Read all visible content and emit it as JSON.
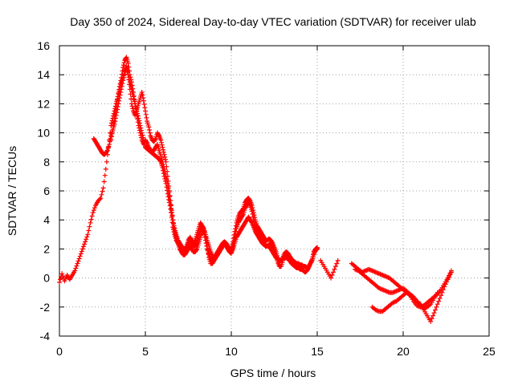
{
  "chart_data": {
    "type": "scatter",
    "title": "Day 350 of 2024, Sidereal Day-to-day VTEC variation (SDTVAR) for receiver ulab",
    "xlabel": "GPS time / hours",
    "ylabel": "SDTVAR / TECUs",
    "xlim": [
      0,
      25
    ],
    "ylim": [
      -4,
      16
    ],
    "xticks": [
      0,
      5,
      10,
      15,
      20,
      25
    ],
    "yticks": [
      -4,
      -2,
      0,
      2,
      4,
      6,
      8,
      10,
      12,
      14,
      16
    ],
    "grid": true,
    "marker": "+",
    "color": "#ff0000",
    "series": [
      {
        "name": "SDTVAR",
        "segments": [
          {
            "x": [
              0.0,
              0.15,
              0.3,
              0.45,
              0.6,
              0.75,
              0.9,
              1.05,
              1.2,
              1.35,
              1.5,
              1.65,
              1.8,
              1.95,
              2.1,
              2.25,
              2.4,
              2.55,
              2.7,
              2.85,
              3.0,
              3.1,
              3.2,
              3.3,
              3.4,
              3.5,
              3.6,
              3.7,
              3.8,
              3.9,
              4.0,
              4.1,
              4.2,
              4.3,
              4.4,
              4.5,
              4.6,
              4.7,
              4.8,
              4.9,
              5.0,
              5.1,
              5.2,
              5.3,
              5.4,
              5.5,
              5.6,
              5.7,
              5.8,
              5.9,
              6.0,
              6.1,
              6.2,
              6.3,
              6.4,
              6.5,
              6.6,
              6.7,
              6.8,
              6.9,
              7.0,
              7.1,
              7.2,
              7.3,
              7.4,
              7.5,
              7.6,
              7.7,
              7.8,
              7.9,
              8.0,
              8.1,
              8.2,
              8.3,
              8.4,
              8.5,
              8.6,
              8.7,
              8.8,
              8.9,
              9.0,
              9.1,
              9.2,
              9.3,
              9.4,
              9.5,
              9.6,
              9.7,
              9.8,
              9.9,
              10.0,
              10.1,
              10.2,
              10.3,
              10.4,
              10.5,
              10.6,
              10.7,
              10.8,
              10.9,
              11.0,
              11.1,
              11.2,
              11.3,
              11.4,
              11.5,
              11.6,
              11.7,
              11.8,
              11.9,
              12.0,
              12.1,
              12.2,
              12.3,
              12.4,
              12.5,
              12.6,
              12.7,
              12.8,
              12.9,
              13.0,
              13.1,
              13.2,
              13.3,
              13.4,
              13.5,
              13.6,
              13.7,
              13.8,
              13.9,
              14.0,
              14.1,
              14.2,
              14.3,
              14.4,
              14.5,
              14.6,
              14.7,
              14.8,
              14.9,
              15.0
            ],
            "y": [
              -0.3,
              0.3,
              -0.2,
              0.2,
              -0.1,
              0.2,
              0.5,
              1.0,
              1.5,
              2.0,
              2.5,
              3.0,
              3.8,
              4.5,
              5.0,
              5.3,
              5.5,
              6.2,
              7.5,
              9.0,
              10.5,
              11.0,
              11.5,
              12.0,
              12.5,
              13.0,
              13.5,
              13.8,
              14.2,
              14.5,
              14.0,
              13.5,
              13.0,
              12.5,
              12.0,
              11.5,
              11.0,
              10.5,
              10.0,
              9.5,
              9.0,
              8.9,
              8.8,
              8.7,
              8.6,
              8.5,
              8.4,
              8.3,
              8.2,
              8.0,
              7.6,
              7.0,
              6.5,
              5.8,
              5.2,
              4.5,
              3.5,
              3.0,
              2.6,
              2.4,
              2.2,
              2.0,
              1.8,
              1.8,
              2.0,
              2.4,
              2.6,
              2.4,
              2.2,
              2.2,
              2.4,
              2.8,
              3.2,
              3.6,
              3.4,
              2.8,
              2.2,
              1.4,
              1.0,
              1.0,
              1.2,
              1.4,
              1.6,
              1.8,
              2.0,
              2.2,
              2.4,
              2.3,
              2.0,
              1.8,
              1.8,
              2.2,
              2.8,
              3.4,
              3.8,
              4.0,
              4.2,
              4.4,
              4.8,
              5.0,
              5.2,
              5.0,
              4.6,
              4.0,
              3.5,
              3.2,
              3.0,
              2.8,
              2.6,
              2.4,
              2.2,
              2.2,
              2.3,
              2.4,
              2.2,
              1.9,
              1.5,
              1.1,
              0.8,
              0.8,
              1.2,
              1.6,
              1.6,
              1.5,
              1.2,
              1.0,
              0.9,
              0.8,
              0.7,
              0.7,
              0.6,
              0.6,
              0.5,
              0.4,
              0.5,
              0.7,
              1.0,
              1.3,
              1.8,
              2.0,
              2.1
            ]
          },
          {
            "x": [
              3.0,
              3.1,
              3.2,
              3.3,
              3.4,
              3.5,
              3.6,
              3.7,
              3.8,
              3.9,
              4.0,
              4.1,
              4.2,
              4.3,
              4.4,
              4.5,
              4.6,
              4.7,
              4.8,
              4.9,
              5.0,
              5.1,
              5.2,
              5.3,
              5.4,
              5.5,
              5.6,
              5.7,
              5.8,
              5.9,
              6.0,
              6.1,
              6.2,
              6.3,
              6.4,
              6.5,
              6.6,
              6.7,
              6.8,
              6.9,
              7.0,
              7.1,
              7.2,
              7.3,
              7.4,
              7.5,
              7.6,
              7.7,
              7.8,
              7.9,
              8.0,
              8.1,
              8.2,
              8.3,
              8.4,
              8.5,
              8.6,
              8.7,
              8.8,
              8.9,
              9.0,
              9.1,
              9.2,
              9.3,
              9.4,
              9.5,
              9.6,
              9.7,
              9.8,
              9.9,
              10.0,
              10.1,
              10.2,
              10.3,
              10.4,
              10.5,
              10.6,
              10.7,
              10.8,
              10.9,
              11.0,
              11.1,
              11.2,
              11.3,
              11.4,
              11.5,
              11.6,
              11.7,
              11.8,
              11.9,
              12.0,
              12.1,
              12.2,
              12.3,
              12.4,
              12.5,
              12.6,
              12.7,
              12.8,
              12.9,
              13.0,
              13.1,
              13.2,
              13.3,
              13.4,
              13.5,
              13.6,
              13.7,
              13.8,
              13.9,
              14.0,
              14.1,
              14.2,
              14.3,
              14.4,
              14.5,
              14.6,
              14.7,
              14.8,
              14.9,
              15.0
            ],
            "y": [
              9.5,
              10.2,
              11.0,
              11.8,
              12.5,
              13.2,
              13.8,
              14.5,
              15.0,
              15.2,
              14.8,
              14.0,
              13.5,
              12.8,
              12.0,
              11.2,
              10.5,
              10.0,
              9.5,
              9.2,
              9.5,
              9.3,
              9.0,
              8.8,
              8.7,
              8.8,
              9.0,
              9.2,
              8.8,
              8.4,
              8.0,
              7.5,
              7.0,
              6.5,
              5.6,
              4.8,
              4.0,
              3.4,
              3.0,
              2.6,
              2.4,
              2.2,
              2.0,
              2.0,
              2.2,
              2.6,
              2.8,
              2.6,
              2.4,
              2.6,
              3.0,
              3.4,
              3.8,
              3.6,
              3.2,
              2.6,
              2.0,
              1.6,
              1.3,
              1.2,
              1.4,
              1.6,
              1.8,
              2.0,
              2.2,
              2.4,
              2.5,
              2.4,
              2.2,
              2.0,
              2.0,
              2.5,
              3.2,
              3.8,
              4.2,
              4.5,
              4.6,
              4.8,
              5.2,
              5.4,
              5.5,
              5.3,
              5.0,
              4.5,
              4.0,
              3.6,
              3.4,
              3.2,
              3.0,
              2.8,
              2.6,
              2.6,
              2.7,
              2.6,
              2.4,
              2.1,
              1.8,
              1.4,
              1.2,
              1.2,
              1.4,
              1.7,
              1.8,
              1.7,
              1.5,
              1.3,
              1.2,
              1.1,
              1.0,
              1.0,
              0.9,
              0.9,
              0.8,
              0.8,
              0.7,
              0.8,
              1.0,
              1.2,
              1.6,
              1.9,
              2.0
            ]
          },
          {
            "x": [
              2.0,
              2.1,
              2.2,
              2.3,
              2.4,
              2.5,
              2.6,
              2.7,
              2.8,
              2.9,
              3.0,
              3.1,
              3.2,
              3.3,
              3.4,
              3.5,
              3.6,
              3.7,
              3.8,
              3.9,
              4.0,
              4.1,
              4.2,
              4.3,
              4.4,
              4.5,
              4.6,
              4.7,
              4.8,
              4.9,
              5.0,
              5.1,
              5.2,
              5.3,
              5.4,
              5.5,
              5.6,
              5.7,
              5.8,
              5.9,
              6.0,
              6.1,
              6.2,
              6.3,
              6.4,
              6.5,
              6.6,
              6.7,
              6.8,
              6.9,
              7.0,
              7.1,
              7.2,
              7.3,
              7.4,
              7.5,
              7.6,
              7.7,
              7.8,
              7.9,
              8.0,
              8.1,
              8.2,
              8.3,
              8.4,
              8.5,
              8.6,
              8.7,
              8.8,
              8.9,
              9.0,
              9.1,
              9.2,
              9.3,
              9.4,
              9.5,
              9.6,
              9.7,
              9.8,
              9.9,
              10.0,
              10.1,
              10.2,
              10.3,
              10.4,
              10.5,
              10.6,
              10.7,
              10.8,
              10.9,
              11.0,
              11.1,
              11.2,
              11.3,
              11.4,
              11.5,
              11.6,
              11.7,
              11.8,
              11.9,
              12.0,
              12.1,
              12.2,
              12.3,
              12.4,
              12.5,
              12.6,
              12.7,
              12.8,
              12.9,
              13.0,
              13.1,
              13.2,
              13.3,
              13.4,
              13.5,
              13.6,
              13.7,
              13.8,
              13.9,
              14.0
            ],
            "y": [
              9.6,
              9.4,
              9.2,
              9.0,
              8.8,
              8.6,
              8.5,
              8.6,
              8.8,
              9.2,
              9.8,
              10.2,
              10.6,
              11.2,
              11.8,
              12.4,
              13.0,
              13.6,
              14.2,
              14.6,
              14.0,
              13.0,
              12.0,
              11.5,
              11.2,
              11.6,
              12.0,
              12.4,
              12.8,
              12.2,
              11.5,
              10.8,
              10.4,
              9.8,
              9.5,
              9.4,
              9.6,
              10.0,
              9.8,
              9.5,
              9.0,
              8.5,
              8.0,
              7.0,
              6.0,
              5.0,
              4.0,
              3.2,
              2.8,
              2.4,
              2.0,
              1.8,
              1.6,
              1.6,
              1.8,
              2.0,
              2.2,
              2.0,
              1.8,
              1.8,
              2.0,
              2.4,
              2.8,
              3.2,
              3.4,
              3.0,
              2.6,
              2.2,
              1.8,
              1.5,
              1.4,
              1.5,
              1.6,
              1.8,
              2.0,
              2.2,
              2.4,
              2.2,
              2.0,
              1.8,
              1.7,
              2.0,
              2.4,
              2.8,
              3.0,
              3.2,
              3.4,
              3.6,
              3.8,
              4.0,
              4.2,
              4.0,
              3.8,
              3.5,
              3.2,
              3.0,
              2.8,
              2.6,
              2.4,
              2.3,
              2.2,
              2.2,
              2.2,
              2.0,
              1.8,
              1.6,
              1.4,
              1.3,
              1.2,
              1.2,
              1.3,
              1.4,
              1.4,
              1.3,
              1.2,
              1.1,
              1.0,
              0.9,
              0.8,
              0.8,
              0.7
            ]
          },
          {
            "x": [
              15.2,
              15.4,
              15.6,
              15.8,
              16.0,
              16.2
            ],
            "y": [
              1.2,
              0.8,
              0.4,
              0.0,
              0.6,
              1.2
            ]
          },
          {
            "x": [
              17.0,
              17.2,
              17.4,
              17.6,
              17.8,
              18.0,
              18.2,
              18.4,
              18.6,
              18.8,
              19.0,
              19.2,
              19.4,
              19.6,
              19.8,
              20.0,
              20.2,
              20.4,
              20.6,
              20.8,
              21.0,
              21.2,
              21.4,
              21.6,
              21.8,
              22.0,
              22.2,
              22.4,
              22.6,
              22.8
            ],
            "y": [
              1.0,
              0.8,
              0.6,
              0.4,
              0.5,
              0.6,
              0.5,
              0.4,
              0.3,
              0.2,
              0.1,
              0.0,
              -0.2,
              -0.4,
              -0.6,
              -0.8,
              -1.0,
              -1.2,
              -1.4,
              -1.6,
              -1.8,
              -2.2,
              -2.6,
              -3.0,
              -2.4,
              -1.8,
              -1.2,
              -0.6,
              -0.1,
              0.4
            ]
          },
          {
            "x": [
              17.2,
              17.4,
              17.6,
              17.8,
              18.0,
              18.2,
              18.4,
              18.6,
              18.8,
              19.0,
              19.2,
              19.4,
              19.6,
              19.8,
              20.0,
              20.2,
              20.4,
              20.6,
              20.8,
              21.0,
              21.2,
              21.4,
              21.6,
              21.8,
              22.0,
              22.2,
              22.4,
              22.6,
              22.8
            ],
            "y": [
              0.6,
              0.5,
              0.3,
              0.1,
              -0.1,
              -0.3,
              -0.5,
              -0.7,
              -0.8,
              -0.9,
              -1.0,
              -1.0,
              -0.9,
              -0.8,
              -0.7,
              -0.9,
              -1.2,
              -1.6,
              -1.9,
              -2.0,
              -1.9,
              -1.7,
              -1.5,
              -1.3,
              -1.1,
              -0.8,
              -0.4,
              0.0,
              0.5
            ]
          },
          {
            "x": [
              18.2,
              18.4,
              18.6,
              18.8,
              19.0,
              19.2,
              19.4,
              19.6,
              19.8,
              20.0,
              20.2,
              20.4,
              20.6,
              20.8,
              21.0,
              21.2,
              21.4,
              21.6,
              21.8,
              22.0
            ],
            "y": [
              -2.0,
              -2.2,
              -2.3,
              -2.3,
              -2.1,
              -1.9,
              -1.7,
              -1.6,
              -1.4,
              -1.2,
              -1.0,
              -1.1,
              -1.3,
              -1.6,
              -1.9,
              -2.1,
              -2.0,
              -1.8,
              -1.4,
              -1.0
            ]
          }
        ]
      }
    ]
  }
}
